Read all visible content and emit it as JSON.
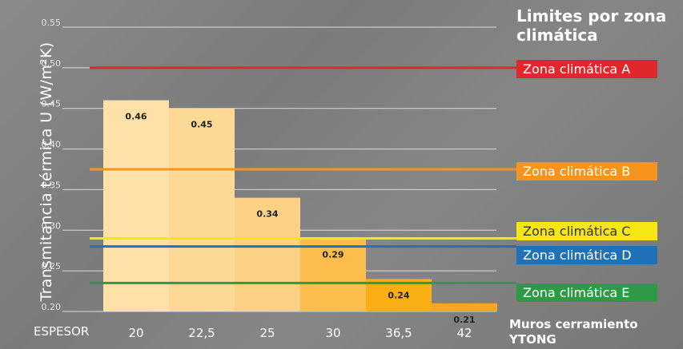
{
  "chart_data": {
    "type": "bar",
    "ylabel": "Transmitancia térmica U (W/m²K)",
    "xlabel_prefix": "ESPESOR",
    "xlabel": "Muros cerramiento YTONG",
    "categories": [
      "20",
      "22,5",
      "25",
      "30",
      "36,5",
      "42"
    ],
    "values": [
      0.46,
      0.45,
      0.34,
      0.29,
      0.24,
      0.21
    ],
    "value_labels": [
      "0.46",
      "0.45",
      "0.34",
      "0.29",
      "0.24",
      "0.21"
    ],
    "bar_colors": [
      "#fde1a8",
      "#fdd996",
      "#fcd085",
      "#fbbd4c",
      "#f9ae14",
      "#f5a623"
    ],
    "ylim": [
      0.2,
      0.55
    ],
    "yticks": [
      0.2,
      0.25,
      0.3,
      0.35,
      0.4,
      0.45,
      0.5,
      0.55
    ],
    "ytick_labels": [
      "0.20",
      "0.25",
      "0.30",
      "0.35",
      "0.40",
      "0.45",
      "0.50",
      "0.55"
    ],
    "grid": true,
    "legend_title": "Limites por zona climática",
    "thresholds": [
      {
        "name": "Zona climática A",
        "value": 0.5,
        "color": "#e0272b"
      },
      {
        "name": "Zona climática B",
        "value": 0.375,
        "color": "#f7941d"
      },
      {
        "name": "Zona climática C",
        "value": 0.29,
        "color": "#f5e614"
      },
      {
        "name": "Zona climática D",
        "value": 0.28,
        "color": "#2072b8"
      },
      {
        "name": "Zona climática E",
        "value": 0.235,
        "color": "#2e9a46"
      }
    ]
  }
}
